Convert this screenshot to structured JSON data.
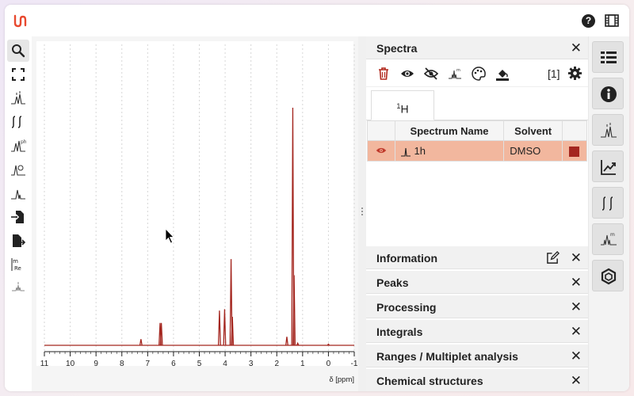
{
  "spectra_panel": {
    "title": "Spectra",
    "count_label": "[1]",
    "tab_nucleus_sup": "1",
    "tab_nucleus": "H",
    "table": {
      "headers": [
        "",
        "Spectrum Name",
        "Solvent",
        ""
      ],
      "rows": [
        {
          "name": "1h",
          "solvent": "DMSO",
          "color": "#a4261f"
        }
      ]
    }
  },
  "panels": [
    {
      "title": "Information",
      "has_edit": true
    },
    {
      "title": "Peaks"
    },
    {
      "title": "Processing"
    },
    {
      "title": "Integrals"
    },
    {
      "title": "Ranges / Multiplet analysis"
    },
    {
      "title": "Chemical structures"
    }
  ],
  "left_tools": [
    "zoom-icon",
    "full-screen-icon",
    "peak-picking-icon",
    "integral-icon",
    "phase-correction-icon",
    "baseline-correction-icon",
    "peak-icon",
    "import-icon",
    "export-icon",
    "real-imaginary-icon",
    "multiplet-icon"
  ],
  "right_tools": [
    "spectra-list-icon",
    "information-icon",
    "peaks-icon",
    "chart-icon",
    "integrals-icon",
    "ranges-icon",
    "structure-icon"
  ],
  "chart_data": {
    "type": "line",
    "xlabel": "δ [ppm]",
    "x_ticks": [
      11,
      10,
      9,
      8,
      7,
      6,
      5,
      4,
      3,
      2,
      1,
      0,
      -1
    ],
    "tick_labels": [
      "11",
      "10",
      "9",
      "8",
      "7",
      "6",
      "5",
      "4",
      "3",
      "2",
      "1",
      "0",
      "-1"
    ],
    "xlim": [
      11,
      -1
    ],
    "ylim": [
      0,
      100
    ],
    "x_reversed": true,
    "grid": true,
    "color": "#a4261f",
    "peaks": [
      {
        "ppm": 7.26,
        "height": 2.6
      },
      {
        "ppm": 6.52,
        "height": 9.4
      },
      {
        "ppm": 6.47,
        "height": 9.4
      },
      {
        "ppm": 4.22,
        "height": 14.6
      },
      {
        "ppm": 4.02,
        "height": 15.2
      },
      {
        "ppm": 3.77,
        "height": 36.3
      },
      {
        "ppm": 3.72,
        "height": 12.0
      },
      {
        "ppm": 1.61,
        "height": 3.6
      },
      {
        "ppm": 1.38,
        "height": 100
      },
      {
        "ppm": 1.33,
        "height": 29.5
      },
      {
        "ppm": 1.19,
        "height": 0.9
      },
      {
        "ppm": 0.0,
        "height": 0.5
      }
    ]
  }
}
